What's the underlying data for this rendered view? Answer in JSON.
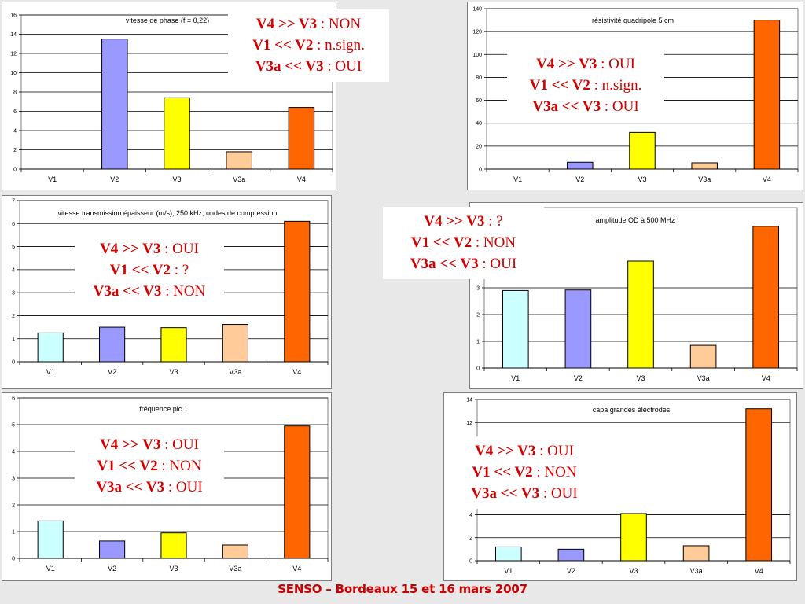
{
  "footer": "SENSO – Bordeaux 15 et 16 mars 2007",
  "colors": {
    "V1": "#ccffff",
    "V2": "#9999ff",
    "V3": "#ffff00",
    "V3a": "#ffcc99",
    "V4": "#ff6600",
    "note_text": "#d40000",
    "footer_text": "#cc0000"
  },
  "chart_data": [
    {
      "type": "bar",
      "title": "vitesse de phase (f = 0,22)",
      "categories": [
        "V1",
        "V2",
        "V3",
        "V3a",
        "V4"
      ],
      "values": [
        0,
        13.5,
        7.4,
        1.8,
        6.4
      ],
      "ylim": [
        0,
        16
      ],
      "yticks": [
        0,
        2,
        4,
        6,
        8,
        10,
        12,
        14,
        16
      ],
      "grid": true
    },
    {
      "type": "bar",
      "title": "résistivité quadripole 5 cm",
      "categories": [
        "V1",
        "V2",
        "V3",
        "V3a",
        "V4"
      ],
      "values": [
        0,
        6,
        32,
        5.5,
        130
      ],
      "ylim": [
        0,
        140
      ],
      "yticks": [
        0,
        20,
        40,
        60,
        80,
        100,
        120,
        140
      ],
      "grid": true
    },
    {
      "type": "bar",
      "title": "vitesse transmission épaisseur (m/s), 250 kHz, ondes de compression",
      "categories": [
        "V1",
        "V2",
        "V3",
        "V3a",
        "V4"
      ],
      "values": [
        1.25,
        1.5,
        1.48,
        1.62,
        6.1
      ],
      "ylim": [
        0,
        7
      ],
      "yticks": [
        0,
        1,
        2,
        3,
        4,
        5,
        6,
        7
      ],
      "grid": true
    },
    {
      "type": "bar",
      "title": "amplitude OD à 500 MHz",
      "categories": [
        "V1",
        "V2",
        "V3",
        "V3a",
        "V4"
      ],
      "values": [
        2.9,
        2.92,
        4.0,
        0.85,
        5.3
      ],
      "ylim": [
        0,
        6
      ],
      "yticks": [
        0,
        1,
        2,
        3
      ],
      "grid": true
    },
    {
      "type": "bar",
      "title": "fréquence pic 1",
      "categories": [
        "V1",
        "V2",
        "V3",
        "V3a",
        "V4"
      ],
      "values": [
        1.4,
        0.65,
        0.95,
        0.5,
        4.95
      ],
      "ylim": [
        0,
        6
      ],
      "yticks": [
        0,
        1,
        2,
        3,
        4,
        5,
        6
      ],
      "grid": true
    },
    {
      "type": "bar",
      "title": "capa grandes électrodes",
      "categories": [
        "V1",
        "V2",
        "V3",
        "V3a",
        "V4"
      ],
      "values": [
        1.2,
        1.0,
        4.1,
        1.3,
        13.2
      ],
      "ylim": [
        0,
        14
      ],
      "yticks": [
        0,
        2,
        4,
        12,
        14
      ],
      "grid": true
    }
  ],
  "notes": [
    {
      "lines": [
        {
          "bold": "V4 >> V3",
          "rest": " : NON"
        },
        {
          "bold": "V1 << V2",
          "rest": " : n.sign."
        },
        {
          "bold": "V3a << V3",
          "rest": " : OUI"
        }
      ]
    },
    {
      "lines": [
        {
          "bold": "V4 >> V3",
          "rest": " : OUI"
        },
        {
          "bold": "V1 << V2",
          "rest": " : n.sign."
        },
        {
          "bold": "V3a << V3",
          "rest": " : OUI"
        }
      ]
    },
    {
      "lines": [
        {
          "bold": "V4 >> V3",
          "rest": " : OUI"
        },
        {
          "bold": "V1 << V2",
          "rest": " : ?"
        },
        {
          "bold": "V3a << V3",
          "rest": " : NON"
        }
      ]
    },
    {
      "lines": [
        {
          "bold": "V4 >> V3",
          "rest": " : ?"
        },
        {
          "bold": "V1 << V2",
          "rest": " : NON"
        },
        {
          "bold": "V3a << V3",
          "rest": " : OUI"
        }
      ]
    },
    {
      "lines": [
        {
          "bold": "V4 >> V3",
          "rest": " : OUI"
        },
        {
          "bold": "V1 << V2",
          "rest": " : NON"
        },
        {
          "bold": "V3a << V3",
          "rest": " : OUI"
        }
      ]
    },
    {
      "lines": [
        {
          "bold": "V4 >> V3",
          "rest": " : OUI"
        },
        {
          "bold": "V1 << V2",
          "rest": " : NON"
        },
        {
          "bold": "V3a << V3",
          "rest": " : OUI"
        }
      ]
    }
  ]
}
